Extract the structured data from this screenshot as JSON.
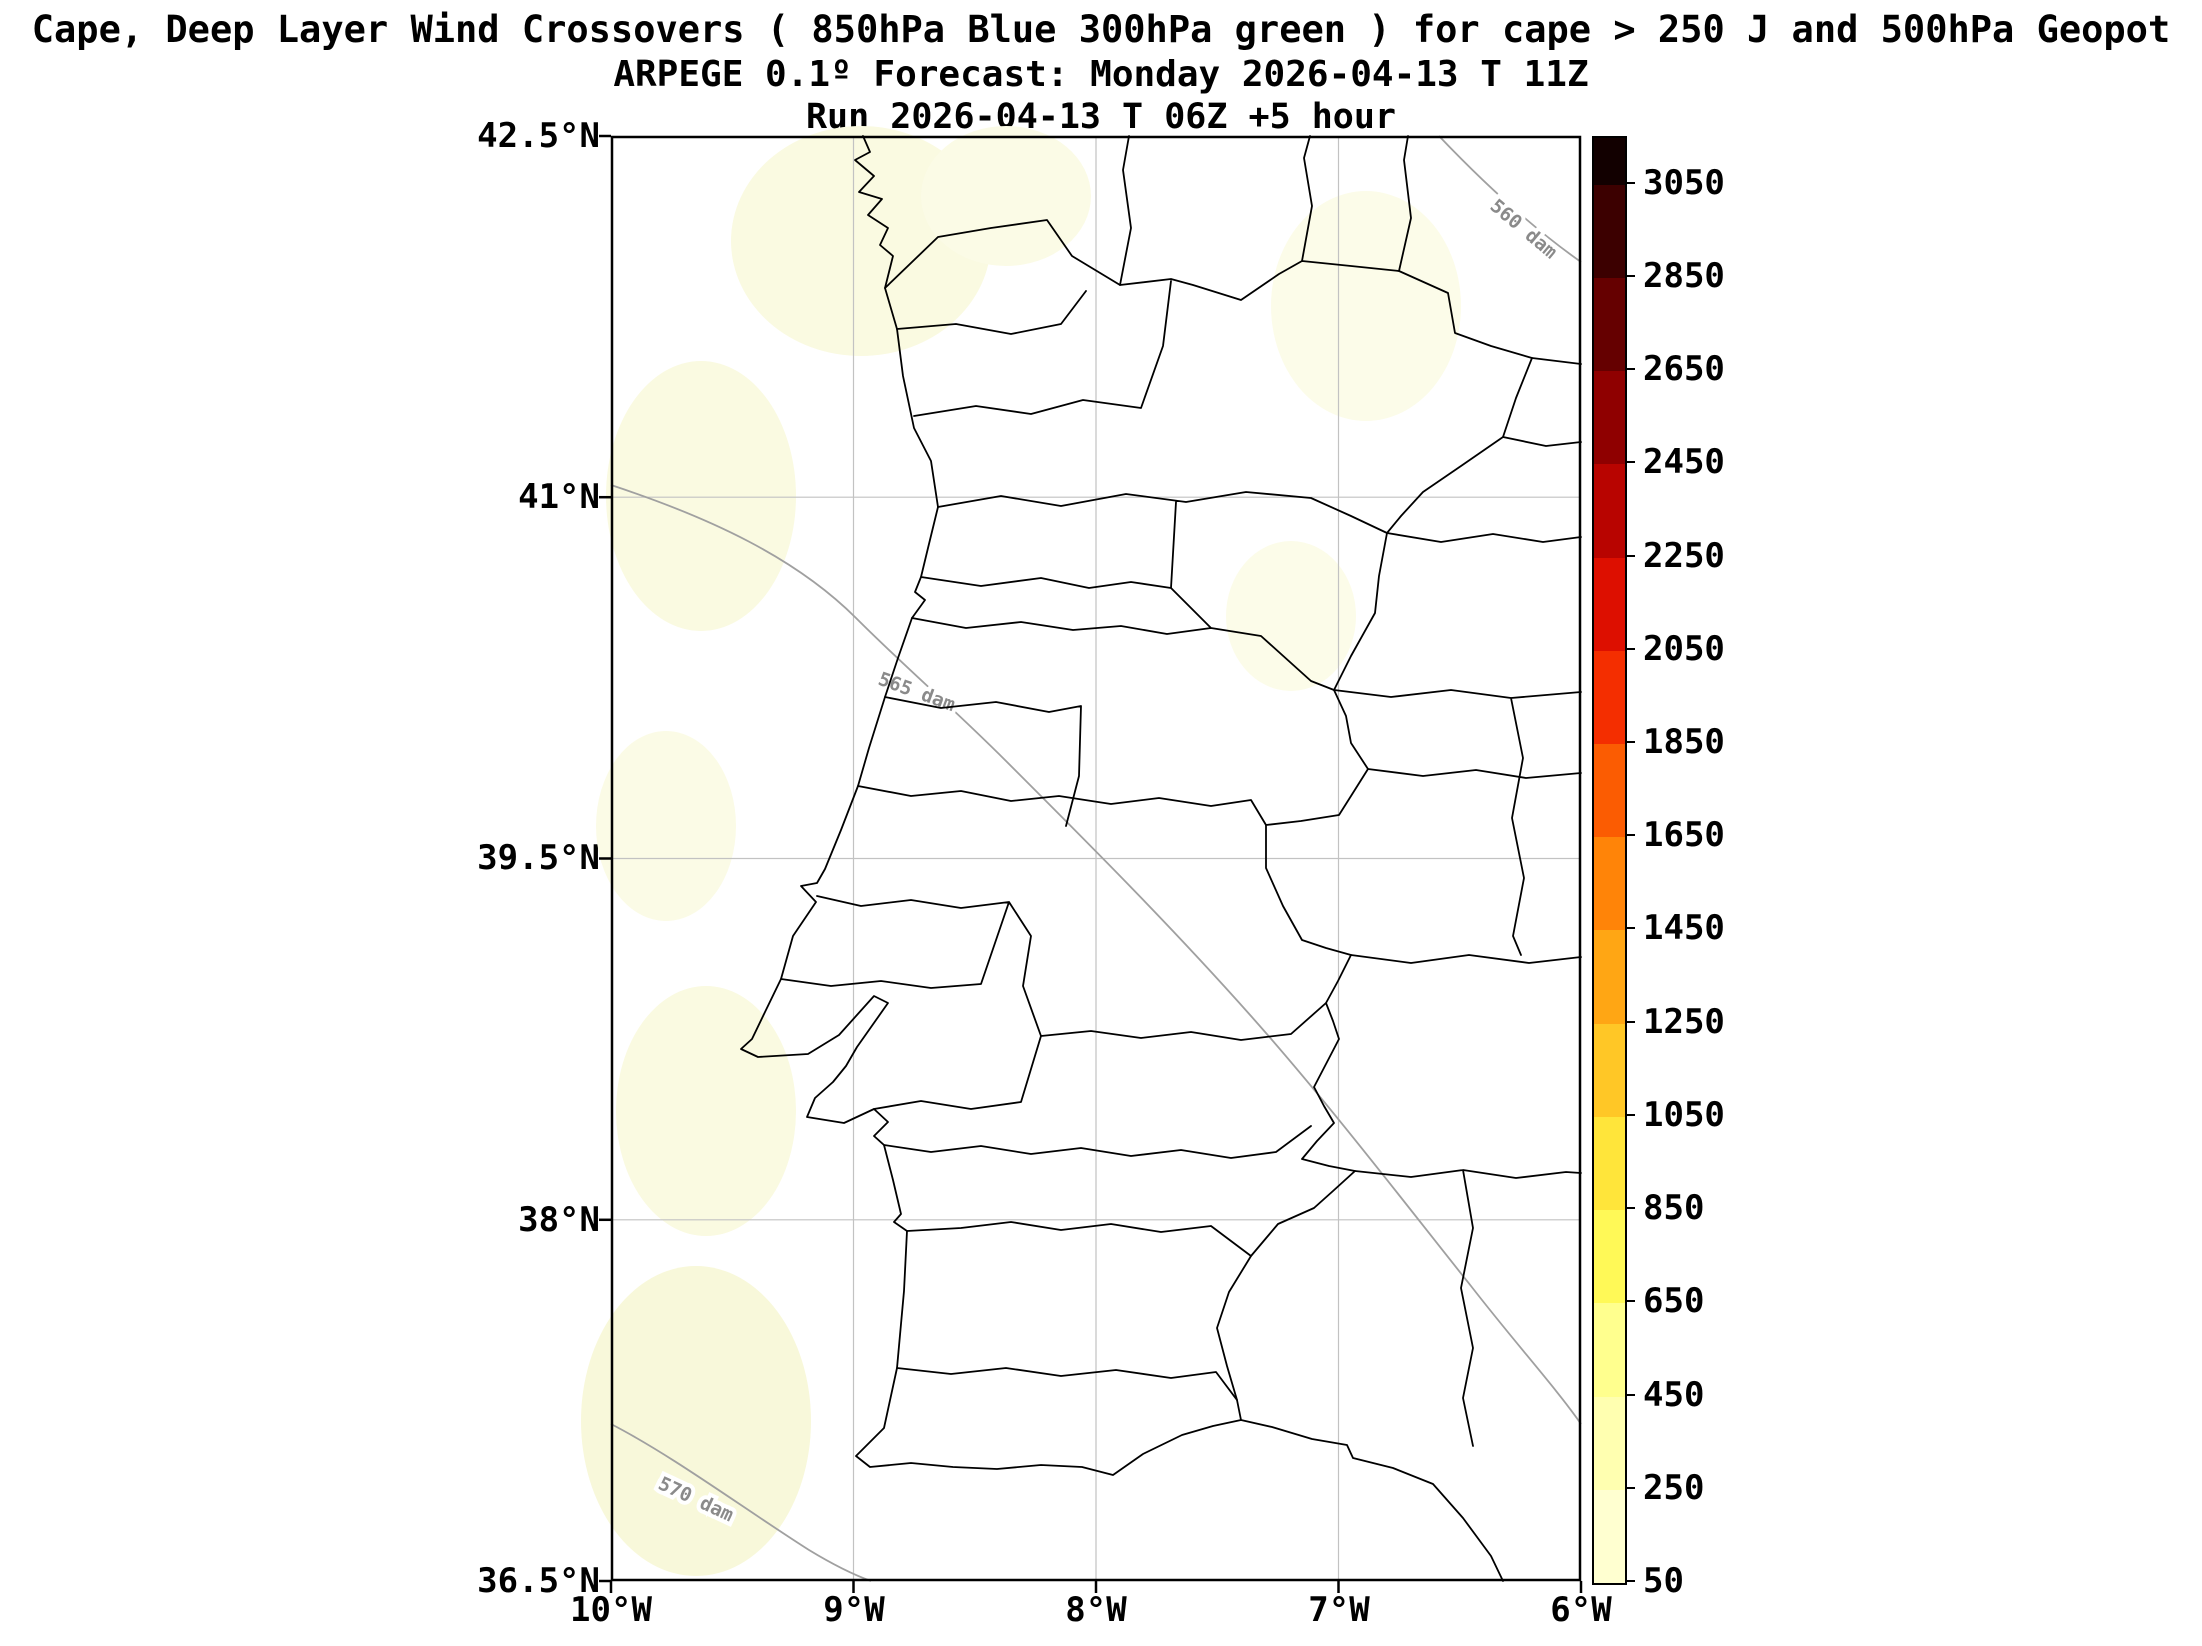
{
  "figure": {
    "title_line1": "Cape, Deep Layer Wind Crossovers ( 850hPa Blue 300hPa green ) for cape > 250 J and 500hPa Geopot",
    "title_line2": "ARPEGE 0.1º Forecast: Monday 2026-04-13 T 11Z",
    "title_line3": "Run 2026-04-13 T 06Z +5 hour"
  },
  "chart_data": {
    "type": "heatmap",
    "subtype": "filled-contour weather map with geopotential contours",
    "region": "Portugal and western Iberia",
    "model": "ARPEGE 0.1º",
    "valid_time": "Monday 2026-04-13 T 11Z",
    "run_time": "2026-04-13 T 06Z",
    "forecast_offset": "+5 hour",
    "grid": true,
    "x_axis": {
      "tick_labels": [
        "10°W",
        "9°W",
        "8°W",
        "7°W",
        "6°W"
      ],
      "range_deg": [
        -10,
        -6
      ]
    },
    "y_axis": {
      "tick_labels": [
        "42.5°N",
        "41°N",
        "39.5°N",
        "38°N",
        "36.5°N"
      ],
      "range_deg": [
        36.5,
        42.5
      ]
    },
    "colorbar": {
      "quantity": "CAPE (J)",
      "value_range": [
        50,
        3150
      ],
      "tick_labels": [
        "3050",
        "2850",
        "2650",
        "2450",
        "2250",
        "2050",
        "1850",
        "1650",
        "1450",
        "1250",
        "1050",
        "850",
        "650",
        "450",
        "250",
        "50"
      ],
      "tick_values": [
        3050,
        2850,
        2650,
        2450,
        2250,
        2050,
        1850,
        1650,
        1450,
        1250,
        1050,
        850,
        650,
        450,
        250,
        50
      ],
      "bands": [
        {
          "from": 50,
          "to": 250,
          "color": "#ffffd0"
        },
        {
          "from": 250,
          "to": 450,
          "color": "#ffffb0"
        },
        {
          "from": 450,
          "to": 650,
          "color": "#ffff8e"
        },
        {
          "from": 650,
          "to": 850,
          "color": "#fff957"
        },
        {
          "from": 850,
          "to": 1050,
          "color": "#ffe53a"
        },
        {
          "from": 1050,
          "to": 1250,
          "color": "#ffc726"
        },
        {
          "from": 1250,
          "to": 1450,
          "color": "#ffa614"
        },
        {
          "from": 1450,
          "to": 1650,
          "color": "#ff8408"
        },
        {
          "from": 1650,
          "to": 1850,
          "color": "#fb5c02"
        },
        {
          "from": 1850,
          "to": 2050,
          "color": "#f42e00"
        },
        {
          "from": 2050,
          "to": 2250,
          "color": "#dd0f00"
        },
        {
          "from": 2250,
          "to": 2450,
          "color": "#b80400"
        },
        {
          "from": 2450,
          "to": 2650,
          "color": "#8f0000"
        },
        {
          "from": 2650,
          "to": 2850,
          "color": "#650000"
        },
        {
          "from": 2850,
          "to": 3050,
          "color": "#3c0000"
        },
        {
          "from": 3050,
          "to": 3150,
          "color": "#120000"
        }
      ]
    },
    "contour_labels": [
      "560 dam",
      "565 dam",
      "570 dam"
    ],
    "shaded_regions_note": "scattered pale-yellow patches = CAPE in lowest band (50-250 J), mainly along the west coast and offshore",
    "colors": {
      "coastline": "#000000",
      "geopotential_contour": "#a0a0a0",
      "gridline": "#c2c2c2",
      "low_cape_fill": "#fafae1"
    }
  }
}
